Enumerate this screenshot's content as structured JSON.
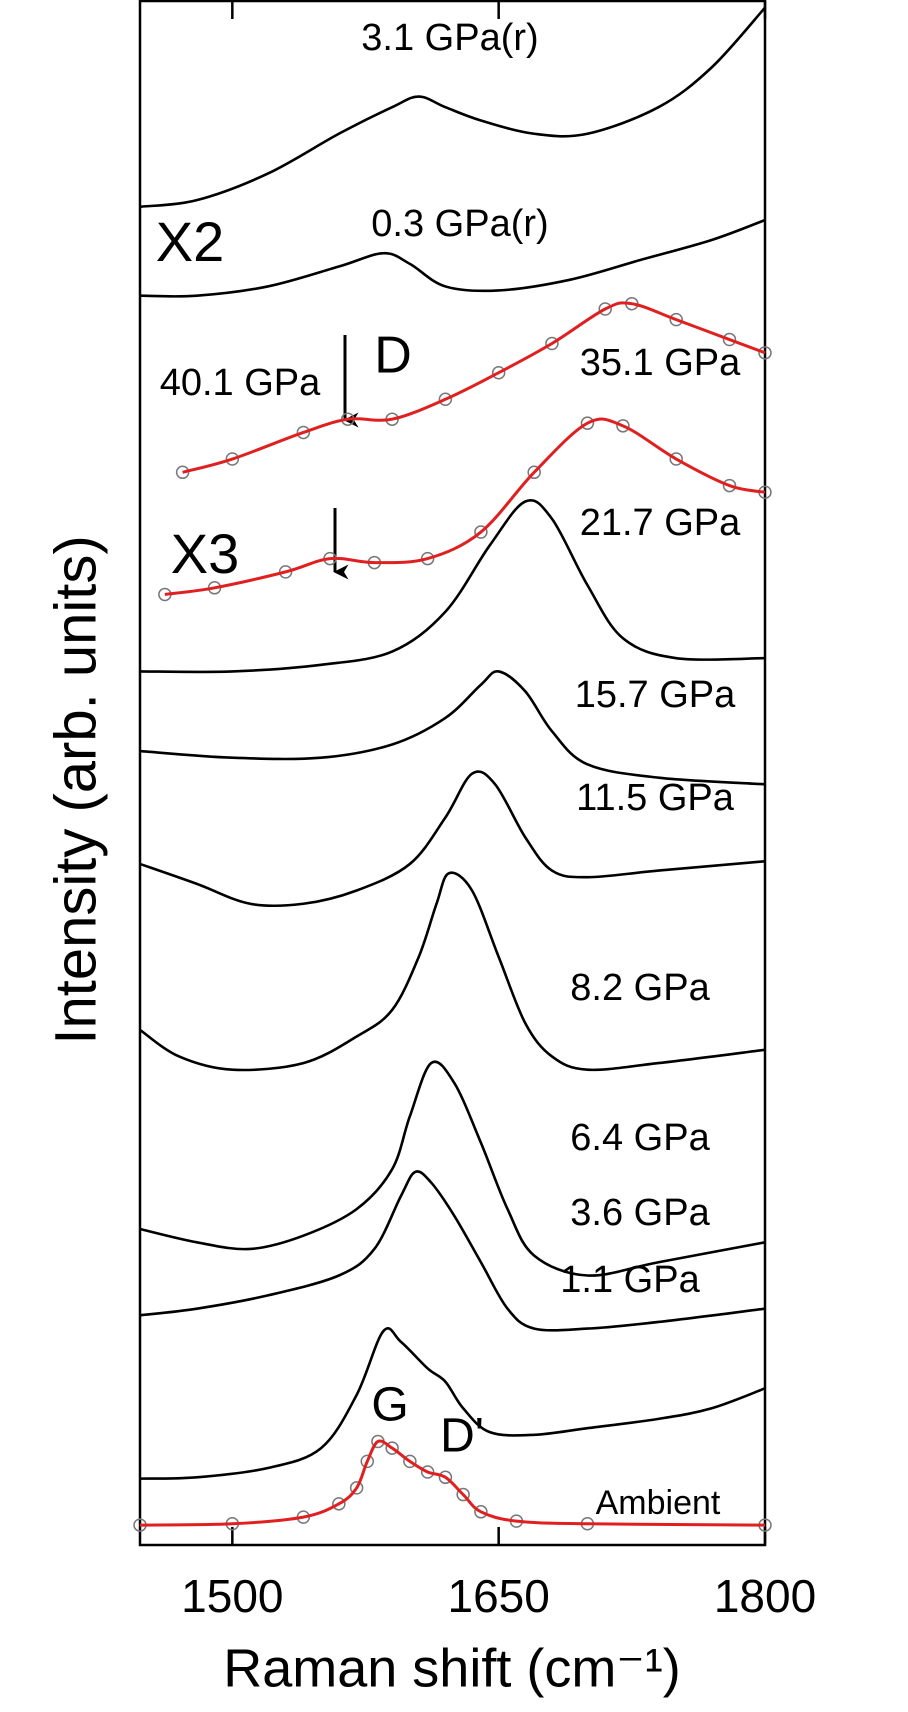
{
  "chart_data": {
    "type": "line",
    "xlabel": "Raman shift (cm⁻¹)",
    "ylabel": "Intensity (arb. units)",
    "xlim": [
      1448,
      1800
    ],
    "xticks": [
      1500,
      1650,
      1800
    ],
    "ylim": [
      0,
      116.3
    ],
    "annotations": [
      "X2",
      "X3",
      "D",
      "G",
      "D'"
    ],
    "series": [
      {
        "name": "Ambient",
        "color": "#e02020",
        "markers": true,
        "x": [
          1448,
          1500,
          1540,
          1560,
          1570,
          1576,
          1582,
          1590,
          1600,
          1610,
          1620,
          1630,
          1640,
          1660,
          1700,
          1800
        ],
        "values": [
          1.5,
          1.6,
          2.1,
          3.1,
          4.3,
          6.3,
          7.8,
          7.3,
          6.3,
          5.5,
          5.1,
          3.8,
          2.5,
          1.8,
          1.6,
          1.5
        ]
      },
      {
        "name": "1.1 GPa",
        "color": "#000000",
        "x": [
          1448,
          1480,
          1520,
          1550,
          1570,
          1585,
          1595,
          1610,
          1620,
          1630,
          1645,
          1670,
          1700,
          1740,
          1770,
          1800
        ],
        "values": [
          5,
          5.1,
          5.8,
          7.3,
          11.3,
          16.1,
          15.3,
          13.3,
          12.3,
          10.3,
          8.5,
          8.3,
          8.8,
          9.5,
          10.3,
          11.8
        ]
      },
      {
        "name": "3.6 GPa",
        "color": "#000000",
        "x": [
          1448,
          1480,
          1520,
          1560,
          1580,
          1595,
          1603,
          1612,
          1625,
          1640,
          1655,
          1670,
          1700,
          1740,
          1800
        ],
        "values": [
          17.3,
          17.8,
          18.8,
          20.3,
          22.3,
          26.3,
          28.1,
          27.3,
          24.8,
          21.3,
          17.8,
          16.3,
          16.3,
          16.8,
          17.8
        ]
      },
      {
        "name": "6.4 GPa",
        "color": "#000000",
        "x": [
          1448,
          1480,
          1510,
          1540,
          1570,
          1590,
          1600,
          1612,
          1625,
          1640,
          1655,
          1670,
          1700,
          1740,
          1800
        ],
        "values": [
          23.8,
          22.8,
          22.3,
          23.3,
          25.3,
          28.3,
          32.3,
          36.3,
          34.8,
          30.3,
          25.3,
          21.8,
          20.3,
          21.3,
          22.8
        ]
      },
      {
        "name": "8.2 GPa",
        "color": "#000000",
        "x": [
          1448,
          1470,
          1500,
          1540,
          1570,
          1590,
          1605,
          1615,
          1622,
          1635,
          1650,
          1665,
          1680,
          1700,
          1740,
          1800
        ],
        "values": [
          38.8,
          36.8,
          35.8,
          36.3,
          38.3,
          40.3,
          44.3,
          48.3,
          50.6,
          49.3,
          44.3,
          39.3,
          36.8,
          35.8,
          36.3,
          37.3
        ]
      },
      {
        "name": "11.5 GPa",
        "color": "#000000",
        "x": [
          1448,
          1480,
          1510,
          1540,
          1570,
          1600,
          1620,
          1635,
          1648,
          1665,
          1680,
          1700,
          1740,
          1800
        ],
        "values": [
          51.3,
          49.8,
          48.3,
          48.3,
          49.3,
          51.3,
          54.8,
          58.1,
          57.3,
          53.3,
          50.8,
          50.3,
          50.8,
          51.5
        ]
      },
      {
        "name": "15.7 GPa",
        "color": "#000000",
        "x": [
          1448,
          1500,
          1550,
          1590,
          1620,
          1640,
          1650,
          1665,
          1680,
          1700,
          1740,
          1800
        ],
        "values": [
          59.8,
          59.3,
          59.3,
          60.3,
          62.3,
          64.8,
          65.8,
          64.3,
          61.3,
          58.8,
          57.8,
          57.3
        ]
      },
      {
        "name": "21.7 GPa",
        "color": "#000000",
        "x": [
          1448,
          1500,
          1550,
          1590,
          1620,
          1645,
          1665,
          1680,
          1700,
          1720,
          1750,
          1800
        ],
        "values": [
          65.8,
          65.8,
          66.3,
          67.3,
          70.3,
          75.3,
          78.6,
          77.3,
          72.3,
          68.3,
          66.8,
          66.8
        ]
      },
      {
        "name": "35.1 GPa",
        "color": "#e02020",
        "markers": true,
        "x": [
          1462,
          1490,
          1530,
          1555,
          1580,
          1610,
          1640,
          1670,
          1700,
          1720,
          1750,
          1780,
          1800
        ],
        "values": [
          71.6,
          72.1,
          73.3,
          74.3,
          74,
          74.3,
          76.3,
          80.8,
          84.5,
          84.3,
          81.8,
          79.8,
          79.3
        ]
      },
      {
        "name": "40.1 GPa",
        "color": "#e02020",
        "markers": true,
        "x": [
          1472,
          1500,
          1540,
          1565,
          1590,
          1620,
          1650,
          1680,
          1710,
          1725,
          1750,
          1780,
          1800
        ],
        "values": [
          80.8,
          81.8,
          83.8,
          84.8,
          84.8,
          86.3,
          88.3,
          90.5,
          93.1,
          93.5,
          92.3,
          90.8,
          89.8
        ]
      },
      {
        "name": "0.3 GPa(r)",
        "color": "#000000",
        "x": [
          1448,
          1480,
          1520,
          1560,
          1585,
          1600,
          1620,
          1650,
          1690,
          1730,
          1770,
          1800
        ],
        "values": [
          94.1,
          94.1,
          94.8,
          96.3,
          97.3,
          96.5,
          94.8,
          94.5,
          95.3,
          96.8,
          98.3,
          99.8
        ]
      },
      {
        "name": "3.1 GPa(r)",
        "color": "#000000",
        "x": [
          1448,
          1480,
          1520,
          1560,
          1590,
          1605,
          1620,
          1640,
          1670,
          1700,
          1740,
          1770,
          1800
        ],
        "values": [
          100.8,
          101.3,
          103.3,
          106.3,
          108.3,
          109.1,
          108.3,
          107.3,
          106.3,
          106.3,
          108.3,
          111.3,
          115.8
        ]
      }
    ]
  }
}
